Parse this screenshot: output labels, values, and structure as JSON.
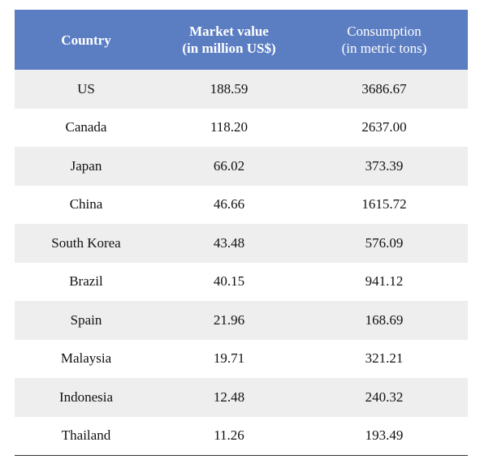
{
  "table": {
    "headers": {
      "country": "Country",
      "market_value": [
        "Market value",
        "(in million US$)"
      ],
      "consumption": [
        "Consumption",
        "(in metric tons)"
      ]
    },
    "rows": [
      {
        "country": "US",
        "market_value": "188.59",
        "consumption": "3686.67"
      },
      {
        "country": "Canada",
        "market_value": "118.20",
        "consumption": "2637.00"
      },
      {
        "country": "Japan",
        "market_value": "66.02",
        "consumption": "373.39"
      },
      {
        "country": "China",
        "market_value": "46.66",
        "consumption": "1615.72"
      },
      {
        "country": "South Korea",
        "market_value": "43.48",
        "consumption": "576.09"
      },
      {
        "country": "Brazil",
        "market_value": "40.15",
        "consumption": "941.12"
      },
      {
        "country": "Spain",
        "market_value": "21.96",
        "consumption": "168.69"
      },
      {
        "country": "Malaysia",
        "market_value": "19.71",
        "consumption": "321.21"
      },
      {
        "country": "Indonesia",
        "market_value": "12.48",
        "consumption": "240.32"
      },
      {
        "country": "Thailand",
        "market_value": "11.26",
        "consumption": "193.49"
      }
    ]
  },
  "colors": {
    "header_bg": "#5b7dc2",
    "header_text": "#ffffff",
    "row_shaded": "#eeeeee",
    "row_plain": "#ffffff"
  }
}
